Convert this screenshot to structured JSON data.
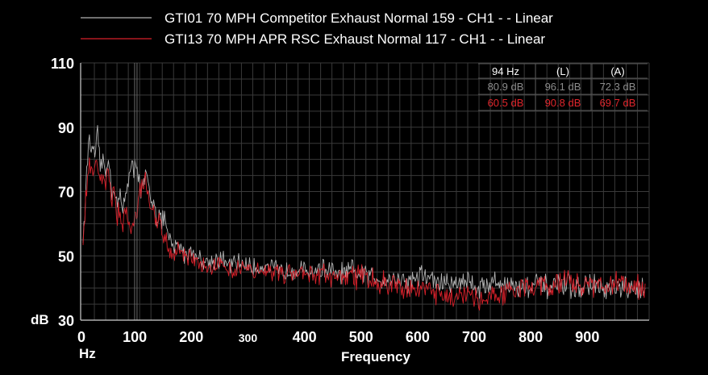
{
  "chart_data": {
    "type": "line",
    "xlabel": "Frequency",
    "x_unit": "Hz",
    "ylabel": "dB",
    "xlim": [
      0,
      1000
    ],
    "ylim": [
      30,
      110
    ],
    "yticks": [
      110,
      90,
      70,
      50,
      30
    ],
    "xticks": [
      0,
      100,
      200,
      300,
      400,
      500,
      600,
      700,
      800,
      900
    ],
    "legend_placement": "top",
    "series": [
      {
        "name": "GTI01 70 MPH Competitor Exhaust Normal 159 - CH1 -  - Linear",
        "color": "#b4b4b4",
        "x": [
          0,
          5,
          10,
          15,
          20,
          25,
          30,
          35,
          40,
          45,
          50,
          55,
          60,
          65,
          70,
          75,
          80,
          85,
          90,
          94,
          100,
          105,
          110,
          115,
          120,
          125,
          130,
          135,
          140,
          145,
          150,
          160,
          170,
          180,
          190,
          200,
          220,
          240,
          260,
          280,
          300,
          325,
          350,
          375,
          400,
          425,
          450,
          475,
          500,
          525,
          550,
          575,
          600,
          625,
          650,
          675,
          700,
          725,
          750,
          775,
          800,
          825,
          850,
          875,
          900,
          925,
          950,
          975,
          995
        ],
        "values": [
          55,
          70,
          87,
          84,
          80,
          88,
          78,
          80,
          75,
          82,
          70,
          72,
          66,
          68,
          64,
          70,
          74,
          78,
          76,
          80.9,
          72,
          70,
          75,
          72,
          66,
          68,
          62,
          64,
          60,
          62,
          56,
          52,
          54,
          50,
          52,
          50,
          48,
          49,
          47,
          48,
          46,
          47,
          45,
          46,
          45,
          46,
          44,
          45,
          44,
          43,
          43,
          42,
          44,
          42,
          41,
          43,
          40,
          42,
          41,
          40,
          41,
          40,
          41,
          40,
          41,
          39,
          40,
          39,
          40
        ]
      },
      {
        "name": "GTI13 70 MPH APR RSC Exhaust Normal 117 - CH1 -  - Linear",
        "color": "#d8202a",
        "x": [
          0,
          5,
          10,
          15,
          20,
          25,
          30,
          35,
          40,
          45,
          50,
          55,
          60,
          65,
          70,
          75,
          80,
          85,
          90,
          94,
          100,
          105,
          110,
          115,
          120,
          125,
          130,
          135,
          140,
          145,
          150,
          160,
          170,
          180,
          190,
          200,
          220,
          240,
          260,
          280,
          300,
          325,
          350,
          375,
          400,
          425,
          450,
          475,
          500,
          525,
          550,
          575,
          600,
          625,
          650,
          675,
          700,
          725,
          750,
          775,
          800,
          825,
          850,
          875,
          900,
          925,
          950,
          975,
          995
        ],
        "values": [
          54,
          68,
          80,
          76,
          78,
          80,
          74,
          76,
          72,
          78,
          66,
          70,
          62,
          64,
          60,
          64,
          62,
          60,
          62,
          60.5,
          70,
          72,
          74,
          70,
          64,
          66,
          58,
          62,
          56,
          58,
          52,
          50,
          52,
          49,
          50,
          49,
          47,
          48,
          46,
          47,
          45,
          46,
          44,
          45,
          44,
          45,
          43,
          44,
          43,
          42,
          41,
          40,
          39,
          38,
          37,
          38,
          36,
          38,
          39,
          40,
          41,
          40,
          42,
          41,
          41,
          40,
          42,
          40,
          41
        ]
      }
    ]
  },
  "readout": {
    "headers": [
      "94 Hz",
      "(L)",
      "(A)"
    ],
    "rows": [
      {
        "cells": [
          "80.9 dB",
          "96.1 dB",
          "72.3 dB"
        ]
      },
      {
        "cells": [
          "60.5 dB",
          "90.8 dB",
          "69.7 dB"
        ]
      }
    ]
  }
}
